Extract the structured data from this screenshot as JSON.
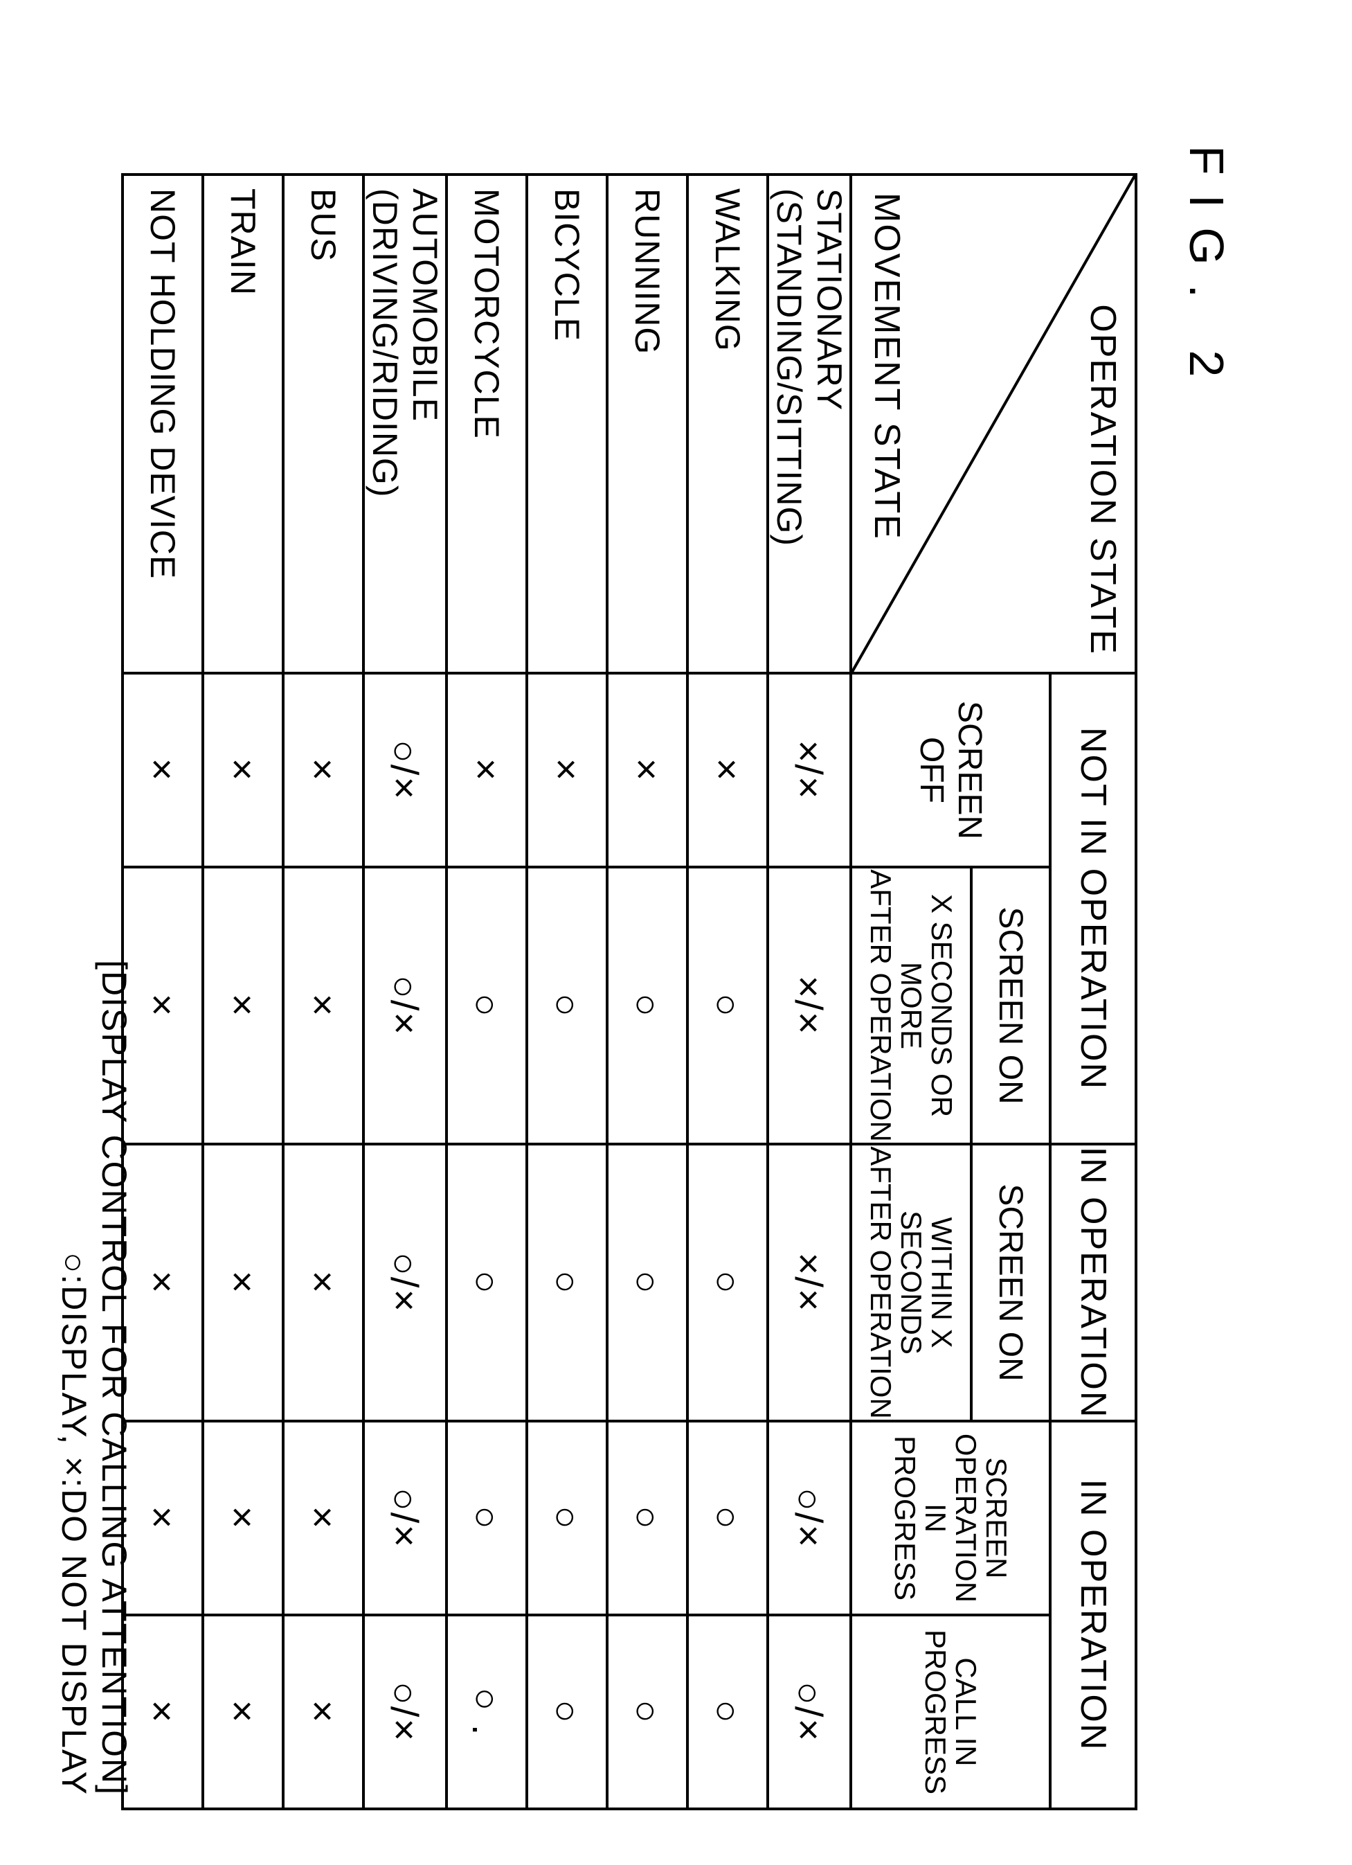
{
  "figure_label": "FIG. 2",
  "diag": {
    "top": "OPERATION STATE",
    "bottom": "MOVEMENT STATE"
  },
  "group_headers": {
    "not_in_op": "NOT IN OPERATION",
    "in_op_1": "IN OPERATION",
    "in_op_2": "IN OPERATION"
  },
  "sub_headers": {
    "screen_off": "SCREEN OFF",
    "screen_on_a": "SCREEN ON",
    "screen_on_b": "SCREEN ON",
    "x_or_more": "X SECONDS OR MORE\nAFTER OPERATION",
    "within_x": "WITHIN X SECONDS\nAFTER OPERATION",
    "screen_op": "SCREEN\nOPERATION\nIN\nPROGRESS",
    "call": "CALL IN\nPROGRESS"
  },
  "rows": [
    {
      "label": "STATIONARY (STANDING/SITTING)",
      "cells": [
        "×/×",
        "×/×",
        "×/×",
        "○/×",
        "○/×"
      ]
    },
    {
      "label": "WALKING",
      "cells": [
        "×",
        "○",
        "○",
        "○",
        "○"
      ]
    },
    {
      "label": "RUNNING",
      "cells": [
        "×",
        "○",
        "○",
        "○",
        "○"
      ]
    },
    {
      "label": "BICYCLE",
      "cells": [
        "×",
        "○",
        "○",
        "○",
        "○"
      ]
    },
    {
      "label": "MOTORCYCLE",
      "cells": [
        "×",
        "○",
        "○",
        "○",
        "○ ."
      ]
    },
    {
      "label": "AUTOMOBILE (DRIVING/RIDING)",
      "cells": [
        "○/×",
        "○/×",
        "○/×",
        "○/×",
        "○/×"
      ]
    },
    {
      "label": "BUS",
      "cells": [
        "×",
        "×",
        "×",
        "×",
        "×"
      ]
    },
    {
      "label": "TRAIN",
      "cells": [
        "×",
        "×",
        "×",
        "×",
        "×"
      ]
    },
    {
      "label": "NOT HOLDING DEVICE",
      "cells": [
        "×",
        "×",
        "×",
        "×",
        "×"
      ]
    }
  ],
  "legend": {
    "line1": "[DISPLAY CONTROL FOR CALLING ATTENTION]",
    "line2": "○:DISPLAY, ×:DO NOT DISPLAY"
  },
  "style": {
    "border_color": "#000000",
    "background": "#ffffff",
    "text_color": "#000000"
  }
}
